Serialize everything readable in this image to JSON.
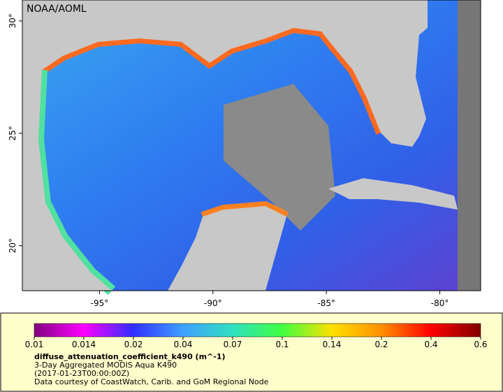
{
  "map": {
    "credit": "NOAA/AOML",
    "lonlim": [
      -98.4,
      -78.2
    ],
    "latlim": [
      18.0,
      30.93
    ],
    "lon_ticks": [
      {
        "value": -95,
        "label": "-95°"
      },
      {
        "value": -90,
        "label": "-90°"
      },
      {
        "value": -85,
        "label": "-85°"
      },
      {
        "value": -80,
        "label": "-80°"
      }
    ],
    "lat_ticks": [
      {
        "value": 20,
        "label": "20°"
      },
      {
        "value": 25,
        "label": "25°"
      },
      {
        "value": 30,
        "label": "30°"
      }
    ]
  },
  "legend": {
    "colorbar_ticks": [
      0.01,
      0.014,
      0.02,
      0.04,
      0.07,
      0.1,
      0.14,
      0.2,
      0.4,
      0.6
    ],
    "title": "diffuse_attenuation_coefficient_k490 (m^-1)",
    "subtitle": "3-Day Aggregated MODIS Aqua K490",
    "time": "(2017-01-23T00:00:00Z)",
    "credit": "Data courtesy of CoastWatch, Carib. and GoM Regional Node"
  }
}
